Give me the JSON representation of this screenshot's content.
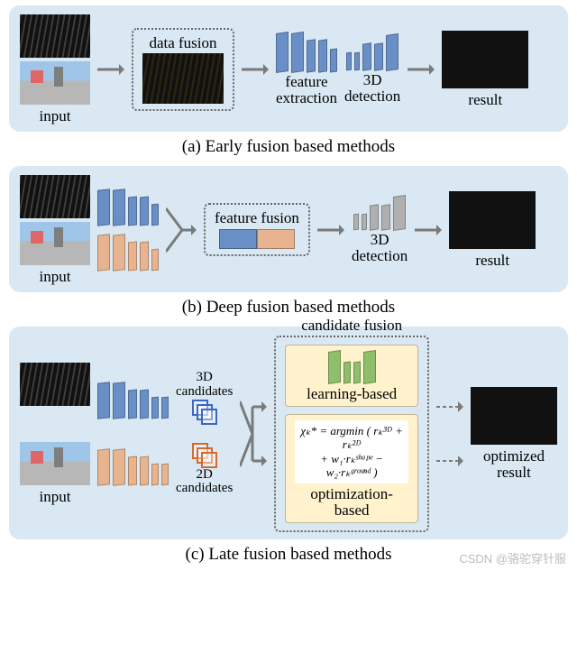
{
  "palette": {
    "panel_bg": "#d9e8f2",
    "bars_blue": "#6a8fc7",
    "bars_grey": "#b0b0b0",
    "bars_orange": "#e7b48f",
    "bars_green": "#8fbf6b",
    "learn_box_bg": "#fff2cc",
    "opt_box_bg": "#fff2cc",
    "arrow_color": "#7a7a7a",
    "cand3d_color": "#3b66c4",
    "cand2d_color": "#d66a2b"
  },
  "labels": {
    "input": "input",
    "result": "result",
    "optimized_result": "optimized\nresult"
  },
  "watermark": "CSDN @骆驼穿针服",
  "panelA": {
    "caption": "(a) Early fusion based methods",
    "dashed_title": "data fusion",
    "feat_label": "feature\nextraction",
    "det_label": "3D\ndetection",
    "feat_bars": {
      "color": "#6a8fc7",
      "widths": [
        14,
        14,
        10,
        10,
        8
      ],
      "heights": [
        44,
        44,
        36,
        36,
        26
      ]
    },
    "det_bars": {
      "color": "#6a8fc7",
      "widths": [
        6,
        6,
        10,
        10,
        14
      ],
      "heights": [
        20,
        20,
        30,
        30,
        40
      ]
    }
  },
  "panelB": {
    "caption": "(b) Deep fusion based methods",
    "dashed_title": "feature fusion",
    "top_bars": {
      "color": "#6a8fc7",
      "widths": [
        14,
        14,
        10,
        10,
        8
      ],
      "heights": [
        40,
        40,
        32,
        32,
        24
      ]
    },
    "bot_bars": {
      "color": "#e7b48f",
      "widths": [
        14,
        14,
        10,
        10,
        8
      ],
      "heights": [
        40,
        40,
        32,
        32,
        24
      ]
    },
    "fusion": {
      "left_color": "#6a8fc7",
      "right_color": "#e7b48f",
      "left_w": 42,
      "right_w": 42,
      "h": 22
    },
    "det_label": "3D\ndetection",
    "det_bars": {
      "color": "#b0b0b0",
      "widths": [
        6,
        6,
        10,
        10,
        14
      ],
      "heights": [
        18,
        18,
        28,
        28,
        38
      ]
    }
  },
  "panelC": {
    "caption": "(c) Late fusion based methods",
    "cand3d_label": "3D\ncandidates",
    "cand2d_label": "2D\ncandidates",
    "top_bars": {
      "color": "#6a8fc7",
      "widths": [
        14,
        14,
        10,
        10,
        8,
        8
      ],
      "heights": [
        40,
        40,
        32,
        32,
        24,
        24
      ]
    },
    "bot_bars": {
      "color": "#e7b48f",
      "widths": [
        14,
        14,
        10,
        10,
        8,
        8
      ],
      "heights": [
        40,
        40,
        32,
        32,
        24,
        24
      ]
    },
    "cand_box_title": "candidate fusion",
    "learning_label": "learning-based",
    "learn_bars": {
      "color": "#8fbf6b",
      "widths": [
        14,
        8,
        8,
        14
      ],
      "heights": [
        36,
        24,
        24,
        36
      ]
    },
    "opt_label": "optimization-based",
    "formula_lines": [
      "χₖ* = argmin ( rₖ³ᴰ + rₖ²ᴰ",
      "+ w₁·rₖˢʰᵃᵖᵉ − w₂·rₖᵍʳᵒᵘⁿᵈ )"
    ]
  },
  "arrows": {
    "w": 34,
    "h": 16
  }
}
